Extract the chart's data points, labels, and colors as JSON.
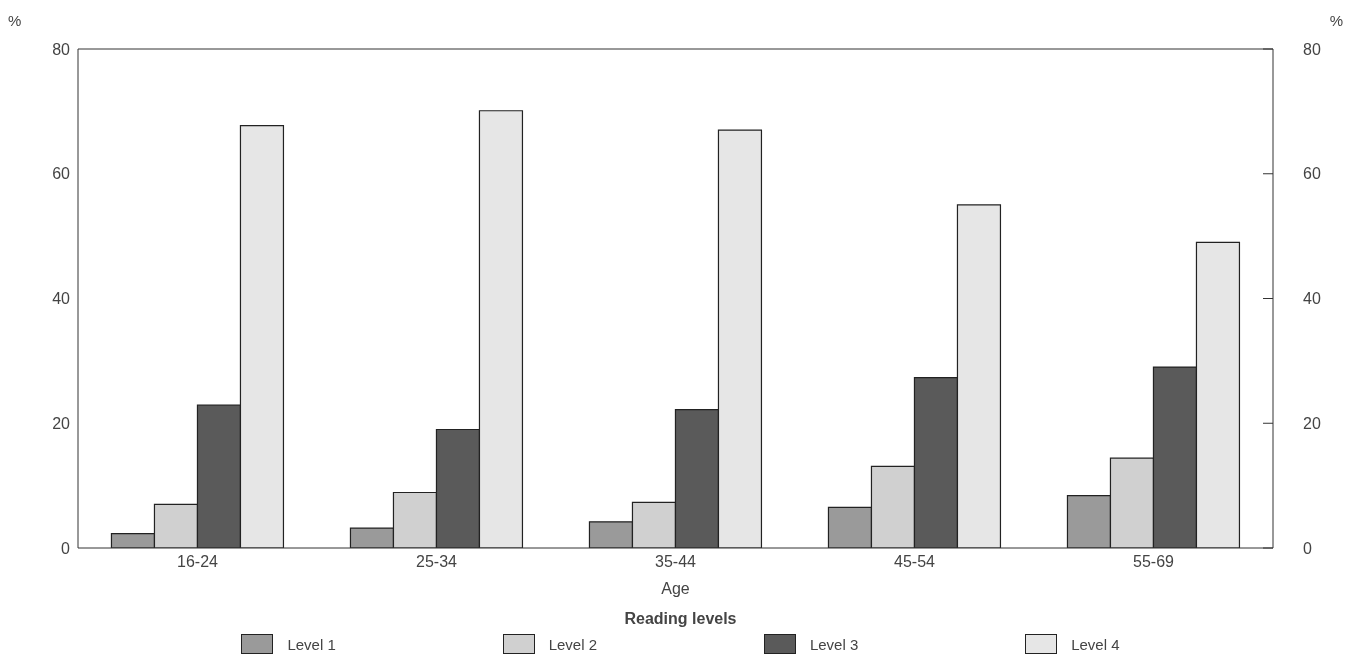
{
  "chart_data": {
    "type": "bar",
    "xlabel": "Age",
    "ylabel": "%",
    "y2label": "%",
    "legend_title": "Reading levels",
    "categories": [
      "16-24",
      "25-34",
      "35-44",
      "45-54",
      "55-69"
    ],
    "series": [
      {
        "name": "Level 1",
        "color": "#9a9a9a",
        "values": [
          2.3,
          3.2,
          4.2,
          6.5,
          8.4
        ]
      },
      {
        "name": "Level 2",
        "color": "#d0d0d0",
        "values": [
          7.0,
          8.9,
          7.3,
          13.1,
          14.4
        ]
      },
      {
        "name": "Level 3",
        "color": "#5a5a5a",
        "values": [
          22.9,
          19.0,
          22.2,
          27.3,
          29.0
        ]
      },
      {
        "name": "Level 4",
        "color": "#e6e6e6",
        "values": [
          67.7,
          70.1,
          67.0,
          55.0,
          49.0
        ]
      }
    ],
    "ylim": [
      0,
      80
    ],
    "yticks": [
      0,
      20,
      40,
      60,
      80
    ],
    "y2lim": [
      0,
      80
    ],
    "y2ticks": [
      0,
      20,
      40,
      60,
      80
    ],
    "grid": false,
    "legend": "bottom"
  }
}
